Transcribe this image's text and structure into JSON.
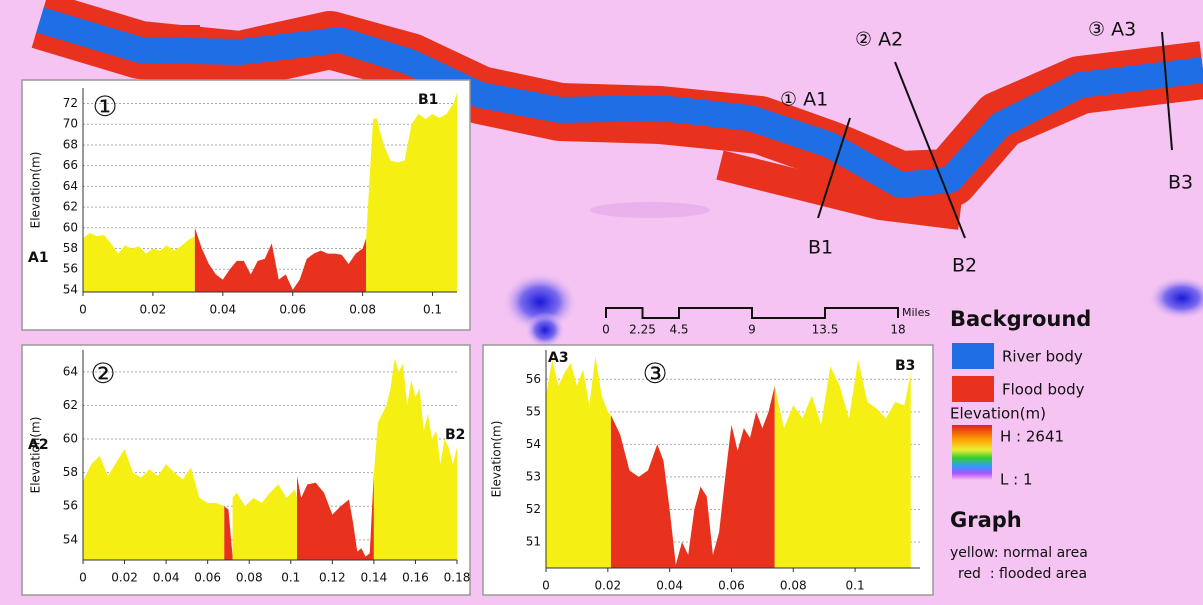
{
  "chart_data": [
    {
      "type": "area",
      "ylabel": "Elevation(m)",
      "marker": "①",
      "start_label": "A1",
      "end_label": "B1",
      "xlim": [
        0,
        0.107
      ],
      "ylim": [
        53.8,
        73.5
      ],
      "xticks": [
        0,
        0.02,
        0.04,
        0.06,
        0.08,
        0.1
      ],
      "yticks": [
        54,
        56,
        58,
        60,
        62,
        64,
        66,
        68,
        70,
        72
      ],
      "grid": true,
      "series": [
        {
          "color": "#f5ef14",
          "x": [
            0,
            0.002,
            0.004,
            0.006,
            0.008,
            0.01,
            0.012,
            0.014,
            0.016,
            0.018,
            0.02,
            0.022,
            0.024,
            0.026,
            0.028,
            0.03,
            0.032
          ],
          "values": [
            59,
            59.5,
            59.2,
            59.3,
            58.5,
            57.5,
            58.3,
            58,
            58.2,
            57.5,
            58,
            57.8,
            58.3,
            57.8,
            58.2,
            58.8,
            59.2
          ]
        },
        {
          "color": "#e8321e",
          "x": [
            0.032,
            0.034,
            0.036,
            0.038,
            0.04,
            0.042,
            0.044,
            0.046,
            0.048,
            0.05,
            0.052,
            0.054,
            0.056,
            0.058,
            0.06,
            0.062,
            0.064,
            0.066,
            0.068,
            0.07,
            0.072,
            0.074,
            0.076,
            0.078,
            0.08,
            0.081
          ],
          "values": [
            60,
            58,
            56.5,
            55.5,
            55,
            56,
            56.8,
            56.8,
            55.5,
            56.8,
            57,
            58.5,
            55,
            55.5,
            54,
            55,
            57,
            57.5,
            57.8,
            57.5,
            57.5,
            57.4,
            56.5,
            57.5,
            58,
            59
          ]
        },
        {
          "color": "#f5ef14",
          "x": [
            0.081,
            0.083,
            0.084,
            0.086,
            0.088,
            0.09,
            0.092,
            0.094,
            0.096,
            0.098,
            0.1,
            0.102,
            0.104,
            0.106,
            0.107
          ],
          "values": [
            59,
            70.5,
            70.6,
            68,
            66.5,
            66.3,
            66.5,
            70,
            71,
            70.5,
            71,
            70.6,
            71,
            72,
            73
          ]
        }
      ]
    },
    {
      "type": "area",
      "ylabel": "Elevation(m)",
      "marker": "②",
      "start_label": "A2",
      "end_label": "B2",
      "xlim": [
        0,
        0.18
      ],
      "ylim": [
        52.8,
        65.3
      ],
      "xticks": [
        0,
        0.02,
        0.04,
        0.06,
        0.08,
        0.1,
        0.12,
        0.14,
        0.16,
        0.18
      ],
      "yticks": [
        54,
        56,
        58,
        60,
        62,
        64
      ],
      "grid": true,
      "series": [
        {
          "color": "#f5ef14",
          "x": [
            0,
            0.004,
            0.008,
            0.012,
            0.016,
            0.02,
            0.024,
            0.028,
            0.032,
            0.036,
            0.04,
            0.044,
            0.048,
            0.052,
            0.056,
            0.06,
            0.064,
            0.068
          ],
          "values": [
            57.5,
            58.5,
            59,
            57.8,
            58.6,
            59.4,
            58,
            57.7,
            58.2,
            57.8,
            58.5,
            58,
            57.6,
            58.3,
            56.5,
            56.2,
            56.2,
            56
          ]
        },
        {
          "color": "#e8321e",
          "x": [
            0.068,
            0.07,
            0.072
          ],
          "values": [
            56,
            55.8,
            53
          ]
        },
        {
          "color": "#f5ef14",
          "x": [
            0.072,
            0.074,
            0.078,
            0.082,
            0.086,
            0.09,
            0.094,
            0.098,
            0.102,
            0.103
          ],
          "values": [
            56.5,
            56.8,
            56,
            56.5,
            56.2,
            56.8,
            57.3,
            56.5,
            57,
            56.5
          ]
        },
        {
          "color": "#e8321e",
          "x": [
            0.103,
            0.105,
            0.108,
            0.112,
            0.116,
            0.12,
            0.124,
            0.128,
            0.13,
            0.132,
            0.134,
            0.136,
            0.138,
            0.14
          ],
          "values": [
            57.8,
            56.5,
            57.3,
            57.4,
            56.8,
            55.5,
            56,
            56.4,
            55,
            53.3,
            53.5,
            53,
            53.2,
            58
          ]
        },
        {
          "color": "#f5ef14",
          "x": [
            0.14,
            0.142,
            0.144,
            0.146,
            0.148,
            0.15,
            0.152,
            0.154,
            0.156,
            0.158,
            0.16,
            0.162,
            0.164,
            0.166,
            0.168,
            0.17,
            0.172,
            0.174,
            0.176,
            0.178,
            0.18
          ],
          "values": [
            58,
            61,
            61.5,
            62,
            63,
            64.8,
            64,
            64.5,
            62,
            63.5,
            62.5,
            63,
            60.5,
            61.5,
            60,
            60.5,
            58.5,
            60,
            59.5,
            58.5,
            59.5
          ]
        }
      ]
    },
    {
      "type": "area",
      "ylabel": "Elevation(m)",
      "marker": "③",
      "start_label": "A3",
      "end_label": "B3",
      "xlim": [
        0,
        0.121
      ],
      "ylim": [
        50.2,
        56.9
      ],
      "xticks": [
        0,
        0.02,
        0.04,
        0.06,
        0.08,
        0.1
      ],
      "yticks": [
        51,
        52,
        53,
        54,
        55,
        56
      ],
      "grid": true,
      "series": [
        {
          "color": "#f5ef14",
          "x": [
            0,
            0.002,
            0.004,
            0.006,
            0.008,
            0.01,
            0.012,
            0.014,
            0.016,
            0.018,
            0.02,
            0.021
          ],
          "values": [
            55.5,
            56.6,
            55.8,
            56.2,
            56.5,
            55.8,
            56.3,
            55.2,
            56.7,
            55.5,
            55,
            54.9
          ]
        },
        {
          "color": "#e8321e",
          "x": [
            0.021,
            0.024,
            0.027,
            0.03,
            0.033,
            0.036,
            0.038,
            0.04,
            0.042,
            0.044,
            0.046,
            0.048,
            0.05,
            0.052,
            0.054,
            0.056,
            0.058,
            0.06,
            0.062,
            0.064,
            0.066,
            0.068,
            0.07,
            0.072,
            0.074
          ],
          "values": [
            54.9,
            54.3,
            53.2,
            53,
            53.2,
            54,
            53.5,
            52,
            50.3,
            51,
            50.6,
            52,
            52.7,
            52.4,
            50.6,
            51.3,
            53,
            54.6,
            53.8,
            54.5,
            54.2,
            55,
            54.5,
            55,
            55.8
          ]
        },
        {
          "color": "#f5ef14",
          "x": [
            0.074,
            0.077,
            0.08,
            0.083,
            0.086,
            0.089,
            0.092,
            0.095,
            0.098,
            0.101,
            0.104,
            0.107,
            0.11,
            0.113,
            0.116,
            0.118
          ],
          "values": [
            55.8,
            54.5,
            55.2,
            54.8,
            55.5,
            54.6,
            56.4,
            55.8,
            54.8,
            56.6,
            55.3,
            55.1,
            54.8,
            55.3,
            55.2,
            56.2
          ]
        }
      ]
    }
  ],
  "map": {
    "labels": [
      "① A1",
      "B1",
      "② A2",
      "B2",
      "③ A3",
      "B3"
    ]
  },
  "scale_bar": {
    "ticks": [
      0,
      2.25,
      4.5,
      9,
      13.5,
      18
    ],
    "unit": "Miles"
  },
  "legend": {
    "background_title": "Background",
    "river": "River body",
    "flood": "Flood body",
    "elevation_title": "Elevation(m)",
    "high": "H : 2641",
    "low": "L : 1",
    "graph_title": "Graph",
    "yellow_note": "yellow: normal area",
    "red_note": "red  : flooded area"
  }
}
